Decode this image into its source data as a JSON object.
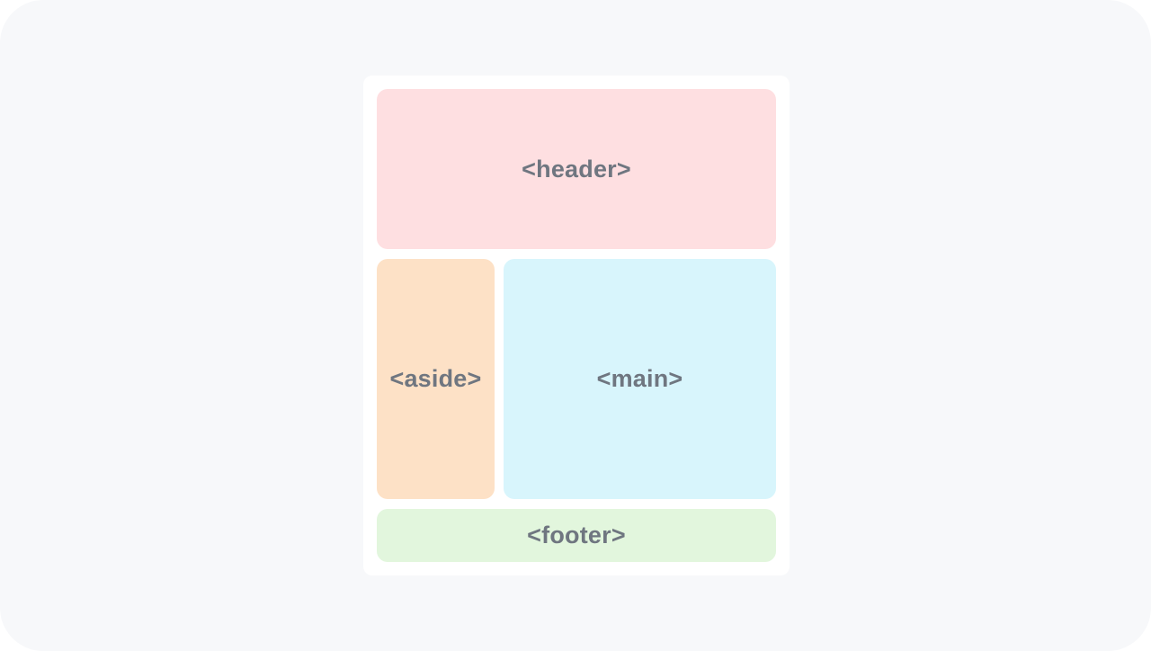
{
  "layout_diagram": {
    "regions": {
      "header": {
        "label": "<header>",
        "color": "#fedfe1"
      },
      "aside": {
        "label": "<aside>",
        "color": "#fde1c6"
      },
      "main": {
        "label": "<main>",
        "color": "#d8f5fc"
      },
      "footer": {
        "label": "<footer>",
        "color": "#e2f6dd"
      }
    },
    "label_color": "#6f7680",
    "card_color": "#ffffff",
    "background_color": "#f7f8fa"
  }
}
